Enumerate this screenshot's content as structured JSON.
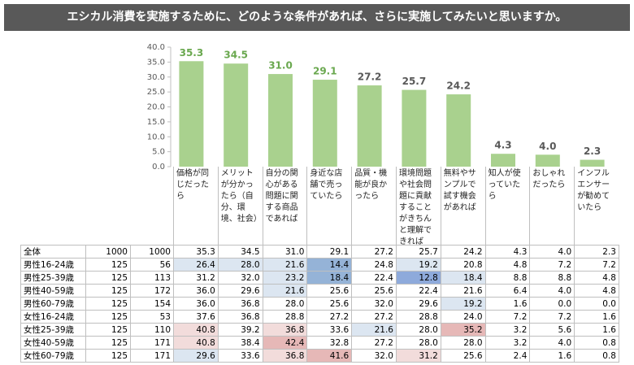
{
  "chart_data": {
    "type": "bar",
    "title": "エシカル消費を実施するために、どのような条件があれば、さらに実施してみたいと思いますか。",
    "categories": [
      "価格が同じだったら",
      "メリットが分かったら（自分、環境、社会）",
      "自分の関心がある問題に関する商品であれば",
      "身近な店舗で売っていたら",
      "品質・機能が良かったら",
      "環境問題や社会問題に貢献することがきちんと理解できれば",
      "無料やサンプルで試す機会があれば",
      "知人が使っていたら",
      "おしゃれだったら",
      "インフルエンサーが勧めていたら"
    ],
    "values": [
      35.3,
      34.5,
      31.0,
      29.1,
      27.2,
      25.7,
      24.2,
      4.3,
      4.0,
      2.3
    ],
    "value_labels": [
      "35.3",
      "34.5",
      "31.0",
      "29.1",
      "27.2",
      "25.7",
      "24.2",
      "4.3",
      "4.0",
      "2.3"
    ],
    "value_label_colors": [
      "#6aa84f",
      "#6aa84f",
      "#6aa84f",
      "#6aa84f",
      "#595959",
      "#595959",
      "#595959",
      "#595959",
      "#595959",
      "#595959"
    ],
    "color": "#a9d18e",
    "ylim": [
      0,
      40
    ],
    "yticks": [
      {
        "value": 0,
        "label": "0.0"
      },
      {
        "value": 5,
        "label": "5.0"
      },
      {
        "value": 10,
        "label": "10.0"
      },
      {
        "value": 15,
        "label": "15.0"
      },
      {
        "value": 20,
        "label": "20.0"
      },
      {
        "value": 25,
        "label": "25.0"
      },
      {
        "value": 30,
        "label": "30.0"
      },
      {
        "value": 35,
        "label": "35.0"
      },
      {
        "value": 40,
        "label": "40.0"
      }
    ]
  },
  "table": {
    "rows": [
      {
        "label": "全体",
        "n1": "1000",
        "n2": "1000",
        "values": [
          "35.3",
          "34.5",
          "31.0",
          "29.1",
          "27.2",
          "25.7",
          "24.2",
          "4.3",
          "4.0",
          "2.3"
        ],
        "colors": [
          null,
          null,
          null,
          null,
          null,
          null,
          null,
          null,
          null,
          null
        ]
      },
      {
        "label": "男性16-24歳",
        "n1": "125",
        "n2": "56",
        "values": [
          "26.4",
          "28.0",
          "21.6",
          "14.4",
          "24.8",
          "19.2",
          "20.8",
          "4.8",
          "7.2",
          "7.2"
        ],
        "colors": [
          "#dce6f1",
          "#dce6f1",
          "#dce6f1",
          "#95b3d7",
          null,
          "#dce6f1",
          null,
          null,
          null,
          null
        ]
      },
      {
        "label": "男性25-39歳",
        "n1": "125",
        "n2": "113",
        "values": [
          "31.2",
          "32.0",
          "23.2",
          "18.4",
          "22.4",
          "12.8",
          "18.4",
          "8.8",
          "8.8",
          "4.8"
        ],
        "colors": [
          null,
          null,
          "#dce6f1",
          "#95b3d7",
          null,
          "#8eaadb",
          "#dce6f1",
          null,
          null,
          null
        ]
      },
      {
        "label": "男性40-59歳",
        "n1": "125",
        "n2": "172",
        "values": [
          "36.0",
          "29.6",
          "21.6",
          "25.6",
          "25.6",
          "22.4",
          "21.6",
          "6.4",
          "4.0",
          "4.8"
        ],
        "colors": [
          null,
          null,
          "#dce6f1",
          null,
          null,
          null,
          null,
          null,
          null,
          null
        ]
      },
      {
        "label": "男性60-79歳",
        "n1": "125",
        "n2": "154",
        "values": [
          "36.0",
          "36.8",
          "28.0",
          "25.6",
          "32.0",
          "29.6",
          "19.2",
          "1.6",
          "0.0",
          "0.0"
        ],
        "colors": [
          null,
          null,
          null,
          null,
          null,
          null,
          "#dce6f1",
          null,
          null,
          null
        ]
      },
      {
        "label": "女性16-24歳",
        "n1": "125",
        "n2": "53",
        "values": [
          "37.6",
          "36.8",
          "28.8",
          "27.2",
          "27.2",
          "28.8",
          "24.0",
          "7.2",
          "7.2",
          "1.6"
        ],
        "colors": [
          null,
          null,
          null,
          null,
          null,
          null,
          null,
          null,
          null,
          null
        ]
      },
      {
        "label": "女性25-39歳",
        "n1": "125",
        "n2": "110",
        "values": [
          "40.8",
          "39.2",
          "36.8",
          "33.6",
          "21.6",
          "28.0",
          "35.2",
          "3.2",
          "5.6",
          "1.6"
        ],
        "colors": [
          "#f2dcdb",
          null,
          "#f2dcdb",
          null,
          "#dce6f1",
          null,
          "#e6b8b7",
          null,
          null,
          null
        ]
      },
      {
        "label": "女性40-59歳",
        "n1": "125",
        "n2": "171",
        "values": [
          "40.8",
          "38.4",
          "42.4",
          "32.8",
          "27.2",
          "28.0",
          "28.0",
          "3.2",
          "4.0",
          "0.8"
        ],
        "colors": [
          "#f2dcdb",
          null,
          "#e6b8b7",
          null,
          null,
          null,
          null,
          null,
          null,
          null
        ]
      },
      {
        "label": "女性60-79歳",
        "n1": "125",
        "n2": "171",
        "values": [
          "29.6",
          "33.6",
          "36.8",
          "41.6",
          "32.0",
          "31.2",
          "25.6",
          "2.4",
          "1.6",
          "0.8"
        ],
        "colors": [
          "#dce6f1",
          null,
          "#f2dcdb",
          "#e6b8b7",
          null,
          "#f2dcdb",
          null,
          null,
          null,
          null
        ]
      }
    ]
  }
}
